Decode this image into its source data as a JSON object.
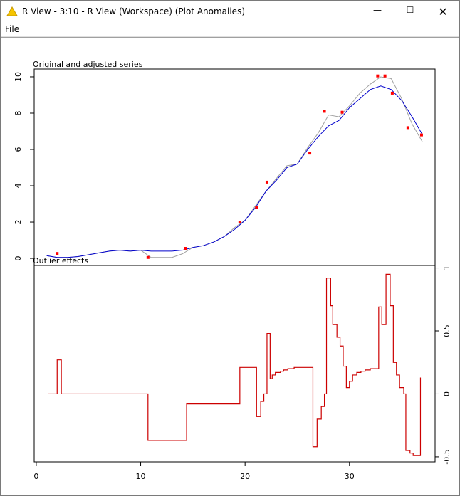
{
  "window": {
    "title": "R View - 3:10 - R View (Workspace) (Plot Anomalies)",
    "menu": [
      "File"
    ]
  },
  "chart_data": [
    {
      "type": "line",
      "title": "Original and adjusted series",
      "x": [
        1,
        2,
        3,
        4,
        5,
        6,
        7,
        8,
        9,
        10,
        11,
        12,
        13,
        14,
        15,
        16,
        17,
        18,
        19,
        20,
        21,
        22,
        23,
        24,
        25,
        26,
        27,
        28,
        29,
        30,
        31,
        32,
        33,
        34,
        35,
        36,
        37
      ],
      "series": [
        {
          "color": "#a0a0a0",
          "values": [
            0.15,
            0.05,
            0.05,
            0.1,
            0.2,
            0.3,
            0.4,
            0.45,
            0.4,
            0.45,
            0.05,
            0.05,
            0.05,
            0.25,
            0.6,
            0.7,
            0.9,
            1.2,
            1.7,
            2.1,
            2.9,
            3.7,
            4.4,
            5.1,
            5.2,
            6.1,
            6.9,
            7.9,
            7.8,
            8.4,
            9.1,
            9.6,
            10.0,
            9.9,
            8.8,
            7.4,
            6.4
          ]
        },
        {
          "color": "#0000cc",
          "values": [
            0.15,
            0.05,
            0.05,
            0.1,
            0.2,
            0.3,
            0.4,
            0.45,
            0.4,
            0.45,
            0.4,
            0.4,
            0.4,
            0.45,
            0.6,
            0.7,
            0.9,
            1.2,
            1.6,
            2.1,
            2.8,
            3.7,
            4.3,
            5.0,
            5.2,
            6.0,
            6.7,
            7.3,
            7.6,
            8.3,
            8.8,
            9.3,
            9.5,
            9.3,
            8.7,
            7.8,
            6.8
          ]
        },
        {
          "color": "#ff0000",
          "marker": "points",
          "x": [
            2.0,
            10.7,
            14.3,
            19.5,
            21.1,
            22.1,
            26.2,
            27.6,
            29.3,
            32.7,
            33.4,
            34.1,
            35.6,
            36.9
          ],
          "values": [
            0.27,
            0.05,
            0.55,
            2.0,
            2.8,
            4.2,
            5.8,
            8.1,
            8.05,
            10.05,
            10.05,
            9.1,
            7.2,
            6.8
          ]
        }
      ],
      "xlim": [
        -0.2,
        38.2
      ],
      "ylim": [
        -0.39,
        10.43
      ],
      "yticks": [
        0,
        2,
        4,
        6,
        8,
        10
      ]
    },
    {
      "type": "step",
      "title": "Outlier effects",
      "color": "#cc0000",
      "x": [
        1.1,
        2.0,
        2.4,
        10.7,
        14.4,
        19.5,
        21.1,
        21.5,
        21.8,
        22.1,
        22.4,
        22.6,
        22.9,
        23.4,
        23.7,
        24.1,
        24.7,
        26.5,
        26.9,
        27.3,
        27.6,
        27.8,
        28.2,
        28.4,
        28.8,
        29.1,
        29.4,
        29.7,
        30.0,
        30.3,
        30.7,
        31.1,
        31.5,
        32.0,
        32.8,
        33.1,
        33.5,
        33.9,
        34.2,
        34.5,
        34.8,
        35.2,
        35.4,
        35.8,
        36.1,
        36.8
      ],
      "values": [
        0,
        0.27,
        0,
        -0.37,
        -0.08,
        0.21,
        -0.18,
        -0.06,
        0.0,
        0.48,
        0.12,
        0.15,
        0.17,
        0.18,
        0.19,
        0.2,
        0.21,
        -0.42,
        -0.2,
        -0.1,
        0,
        0.92,
        0.7,
        0.55,
        0.45,
        0.38,
        0.22,
        0.05,
        0.1,
        0.15,
        0.17,
        0.18,
        0.19,
        0.2,
        0.69,
        0.55,
        0.95,
        0.7,
        0.25,
        0.15,
        0.05,
        0,
        -0.45,
        -0.47,
        -0.49,
        0.13
      ],
      "xlim": [
        -0.2,
        38.2
      ],
      "xticks": [
        0,
        10,
        20,
        30
      ],
      "y2lim": [
        -0.54,
        1.02
      ],
      "y2ticks": [
        1,
        0.5,
        0,
        -0.5
      ]
    }
  ]
}
